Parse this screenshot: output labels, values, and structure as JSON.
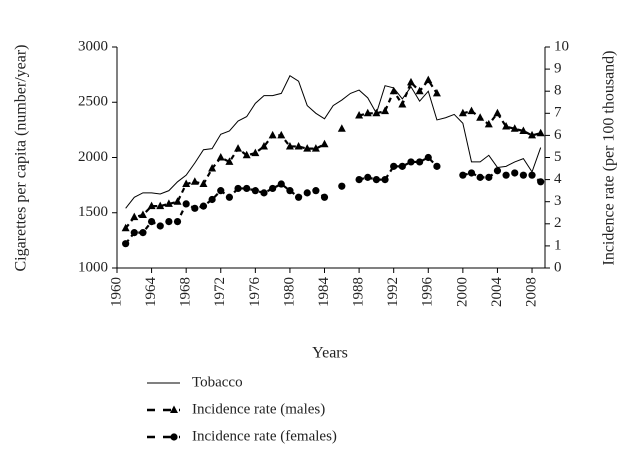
{
  "chart_data": {
    "type": "line",
    "x_label": "Years",
    "y_label": "Cigarettes per capita (number/year)",
    "y2_label": "Incidence rate (per 100 thousand)",
    "x": [
      1961,
      1962,
      1963,
      1964,
      1965,
      1966,
      1967,
      1968,
      1969,
      1970,
      1971,
      1972,
      1973,
      1974,
      1975,
      1976,
      1977,
      1978,
      1979,
      1980,
      1981,
      1982,
      1983,
      1984,
      1985,
      1986,
      1987,
      1988,
      1989,
      1990,
      1991,
      1992,
      1993,
      1994,
      1995,
      1996,
      1997,
      1998,
      1999,
      2000,
      2001,
      2002,
      2003,
      2004,
      2005,
      2006,
      2007,
      2008,
      2009
    ],
    "series": [
      {
        "name": "Tobacco",
        "color": "#000000",
        "line": "solid",
        "marker": "none",
        "values": [
          1540,
          1640,
          1680,
          1680,
          1670,
          1700,
          1780,
          1840,
          1950,
          2070,
          2080,
          2210,
          2240,
          2330,
          2370,
          2490,
          2560,
          2560,
          2580,
          2740,
          2690,
          2470,
          2400,
          2350,
          2470,
          2520,
          2580,
          2610,
          2540,
          2400,
          2650,
          2630,
          2530,
          2640,
          2510,
          2600,
          2340,
          2360,
          2390,
          2310,
          1960,
          1960,
          2020,
          1910,
          1920,
          1960,
          1990,
          1870,
          2090
        ]
      },
      {
        "name": "Incidence rate (males)",
        "color": "#000000",
        "line": "dash",
        "marker": "triangle",
        "axis": "y2",
        "values": [
          1.8,
          2.3,
          2.4,
          2.8,
          2.8,
          2.9,
          3.0,
          3.8,
          3.9,
          3.8,
          4.5,
          5.0,
          4.8,
          5.4,
          5.1,
          5.2,
          5.5,
          6.0,
          6.0,
          5.5,
          5.5,
          5.4,
          5.4,
          5.6,
          null,
          6.3,
          null,
          6.9,
          7.0,
          7.0,
          7.1,
          8.0,
          7.4,
          8.4,
          8.0,
          8.5,
          7.9,
          null,
          null,
          7.0,
          7.1,
          6.8,
          6.5,
          7.0,
          6.4,
          6.3,
          6.2,
          6.0,
          6.1
        ]
      },
      {
        "name": "Incidence rate (females)",
        "color": "#000000",
        "line": "dash",
        "marker": "circle",
        "axis": "y2",
        "values": [
          1.1,
          1.6,
          1.6,
          2.1,
          1.9,
          2.1,
          2.1,
          2.9,
          2.7,
          2.8,
          3.1,
          3.5,
          3.2,
          3.6,
          3.6,
          3.5,
          3.4,
          3.6,
          3.8,
          3.5,
          3.2,
          3.4,
          3.5,
          3.2,
          null,
          3.7,
          null,
          4.0,
          4.1,
          4.0,
          4.0,
          4.6,
          4.6,
          4.8,
          4.8,
          5.0,
          4.6,
          null,
          null,
          4.2,
          4.3,
          4.1,
          4.1,
          4.4,
          4.2,
          4.3,
          4.2,
          4.2,
          3.9
        ]
      }
    ],
    "xlim": [
      1960,
      2009.5
    ],
    "xticks": [
      1960,
      1964,
      1968,
      1972,
      1976,
      1980,
      1984,
      1988,
      1992,
      1996,
      2000,
      2004,
      2008
    ],
    "ylim": [
      1000,
      3000
    ],
    "yticks": [
      1000,
      1500,
      2000,
      2500,
      3000
    ],
    "y2lim": [
      0,
      10
    ],
    "y2ticks": [
      0,
      1,
      2,
      3,
      4,
      5,
      6,
      7,
      8,
      9,
      10
    ]
  }
}
